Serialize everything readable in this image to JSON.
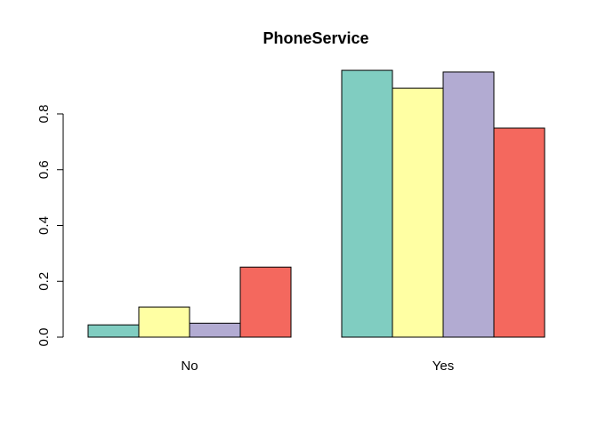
{
  "chart_data": {
    "type": "bar",
    "title": "PhoneService",
    "xlabel": "",
    "ylabel": "",
    "categories": [
      "No",
      "Yes"
    ],
    "series": [
      {
        "values": [
          0.044,
          0.956
        ],
        "color": "#80CDC1"
      },
      {
        "values": [
          0.108,
          0.892
        ],
        "color": "#FFFFA3"
      },
      {
        "values": [
          0.05,
          0.95
        ],
        "color": "#B2ABD2"
      },
      {
        "values": [
          0.251,
          0.749
        ],
        "color": "#F4685E"
      }
    ],
    "ylim": [
      0,
      0.96
    ],
    "yticks": [
      0.0,
      0.2,
      0.4,
      0.6,
      0.8
    ],
    "ytick_labels": [
      "0.0",
      "0.2",
      "0.4",
      "0.6",
      "0.8"
    ],
    "grid": false,
    "legend": "none"
  }
}
